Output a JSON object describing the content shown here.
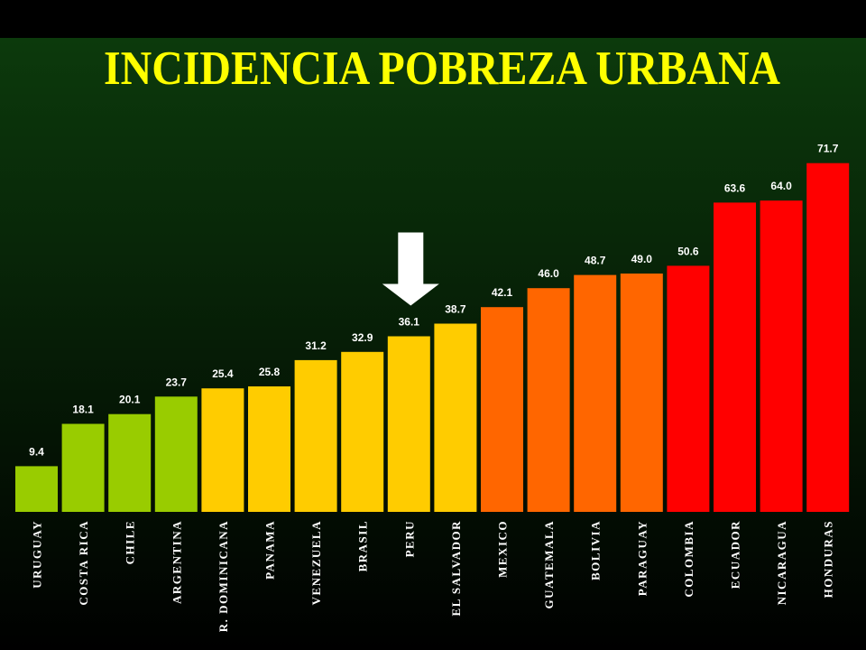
{
  "chart_data": {
    "type": "bar",
    "title": "INCIDENCIA POBREZA URBANA",
    "categories": [
      "URUGUAY",
      "COSTA RICA",
      "CHILE",
      "ARGENTINA",
      "R. DOMINICANA",
      "PANAMA",
      "VENEZUELA",
      "BRASIL",
      "PERU",
      "EL SALVADOR",
      "MEXICO",
      "GUATEMALA",
      "BOLIVIA",
      "PARAGUAY",
      "COLOMBIA",
      "ECUADOR",
      "NICARAGUA",
      "HONDURAS"
    ],
    "values": [
      9.4,
      18.1,
      20.1,
      23.7,
      25.4,
      25.8,
      31.2,
      32.9,
      36.1,
      38.7,
      42.1,
      46.0,
      48.7,
      49.0,
      50.6,
      63.6,
      64.0,
      71.7
    ],
    "data_labels": [
      "9.4",
      "18.1",
      "20.1",
      "23.7",
      "25.4",
      "25.8",
      "31.2",
      "32.9",
      "36.1",
      "38.7",
      "42.1",
      "46.0",
      "48.7",
      "49.0",
      "50.6",
      "63.6",
      "64.0",
      "71.7"
    ],
    "bar_colors": [
      "#99cc00",
      "#99cc00",
      "#99cc00",
      "#99cc00",
      "#ffcc00",
      "#ffcc00",
      "#ffcc00",
      "#ffcc00",
      "#ffcc00",
      "#ffcc00",
      "#ff6600",
      "#ff6600",
      "#ff6600",
      "#ff6600",
      "#ff0000",
      "#ff0000",
      "#ff0000",
      "#ff0000"
    ],
    "ylim": [
      0,
      80
    ],
    "grid": false,
    "highlight": {
      "icon": "down-arrow-icon",
      "category_index": 8,
      "color": "#ffffff"
    }
  },
  "theme": {
    "title_color": "#ffff00",
    "label_color": "#ffffff",
    "band_color": "#000000",
    "background_top": "#0c3a0c",
    "background_bottom": "#000000"
  }
}
